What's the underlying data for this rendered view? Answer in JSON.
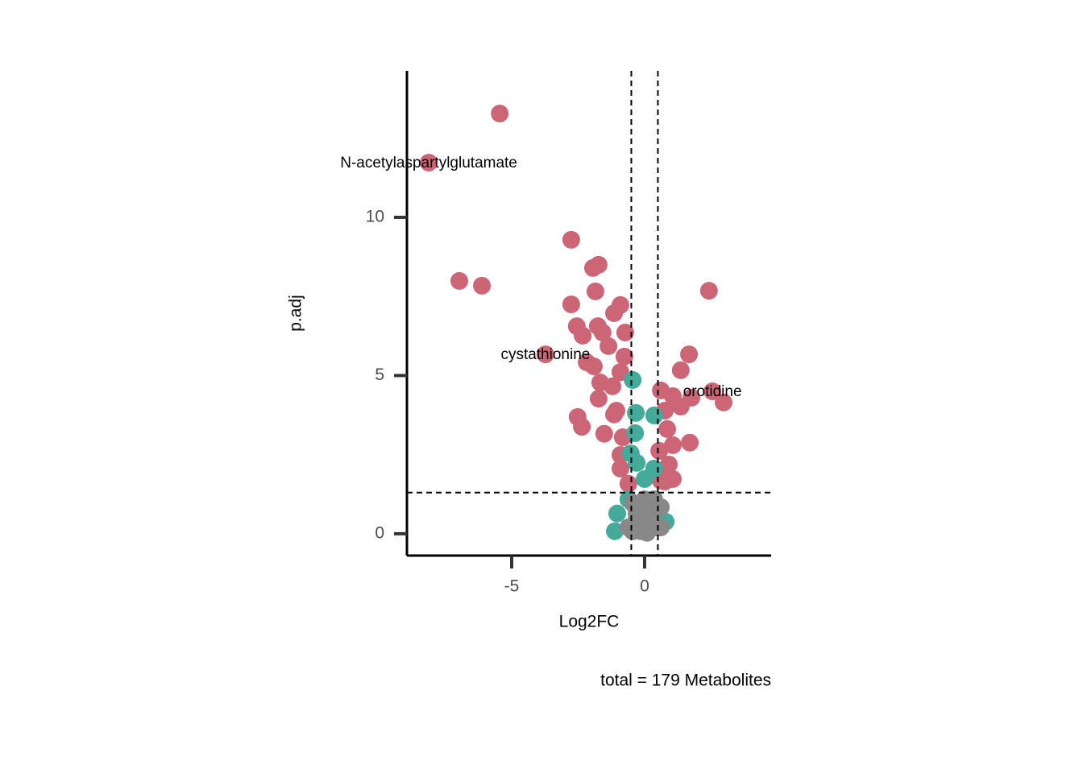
{
  "chart_data": {
    "type": "scatter",
    "x_label": "Log2FC",
    "y_label": "p.adj",
    "caption": "total = 179 Metabolites",
    "xlim": [
      -8.94,
      4.76
    ],
    "ylim": [
      -0.69,
      14.63
    ],
    "xticks": [
      -5,
      0
    ],
    "yticks": [
      0,
      5,
      10
    ],
    "vlines": [
      -0.5,
      0.5
    ],
    "hline": 1.3,
    "series": [
      {
        "color": "#cc6677",
        "x": [
          -5.45,
          -8.12,
          -2.76,
          -1.94,
          -1.73,
          -6.97,
          -6.12,
          -1.85,
          2.42,
          -2.76,
          -0.91,
          -1.15,
          -2.55,
          -1.76,
          -2.33,
          -1.58,
          -0.73,
          -1.36,
          -3.73,
          1.67,
          -0.76,
          -2.18,
          -1.91,
          1.36,
          -0.91,
          -1.67,
          -1.21,
          0.61,
          2.55,
          -1.73,
          1.06,
          1.76,
          2.97,
          1.36,
          -1.06,
          0.76,
          -2.52,
          -2.36,
          -1.15,
          0.85,
          -1.52,
          -0.82,
          1.7,
          1.06,
          0.55,
          -0.91,
          0.91,
          -0.91,
          0.85,
          1.06,
          0.61,
          -0.61,
          0.76
        ],
        "values": [
          13.28,
          11.73,
          9.29,
          8.4,
          8.5,
          7.99,
          7.84,
          7.66,
          7.68,
          7.25,
          7.23,
          6.97,
          6.56,
          6.56,
          6.26,
          6.36,
          6.36,
          5.93,
          5.67,
          5.67,
          5.6,
          5.42,
          5.29,
          5.17,
          5.11,
          4.78,
          4.66,
          4.53,
          4.5,
          4.27,
          4.35,
          4.3,
          4.15,
          4.02,
          3.89,
          3.89,
          3.69,
          3.38,
          3.77,
          3.31,
          3.16,
          3.05,
          2.88,
          2.8,
          2.62,
          2.49,
          2.19,
          2.06,
          1.86,
          1.73,
          1.68,
          1.58,
          1.65
        ]
      },
      {
        "color": "#44aa99",
        "x": [
          -0.45,
          -0.33,
          0.36,
          -0.36,
          -0.52,
          -0.3,
          0.36,
          0,
          -1.03,
          -1.12,
          0.79,
          -0.61
        ],
        "values": [
          4.86,
          3.82,
          3.74,
          3.18,
          2.54,
          2.24,
          2.06,
          1.73,
          0.64,
          0.08,
          0.38,
          1.09
        ]
      },
      {
        "color": "#888888",
        "x": [
          -0.45,
          -0.15,
          0.15,
          0.45,
          0.61,
          -0.3,
          0,
          0.3,
          -0.61,
          -0.15,
          0.15,
          0.45,
          -0.3,
          0.24,
          0,
          0.36,
          -0.45,
          0.61,
          -0.06,
          0.09
        ],
        "values": [
          0.97,
          0.84,
          0.89,
          0.79,
          0.84,
          0.46,
          0.33,
          0.46,
          0.2,
          0.08,
          0.13,
          0.2,
          0.64,
          0.59,
          1.09,
          1.09,
          0.08,
          0.2,
          0.59,
          0.03
        ]
      }
    ],
    "annotations": [
      {
        "text": "N-acetylaspartylglutamate",
        "x": -8.12,
        "y": 11.73
      },
      {
        "text": "cystathionine",
        "x": -3.73,
        "y": 5.67
      },
      {
        "text": "orotidine",
        "x": 2.55,
        "y": 4.5
      }
    ]
  }
}
